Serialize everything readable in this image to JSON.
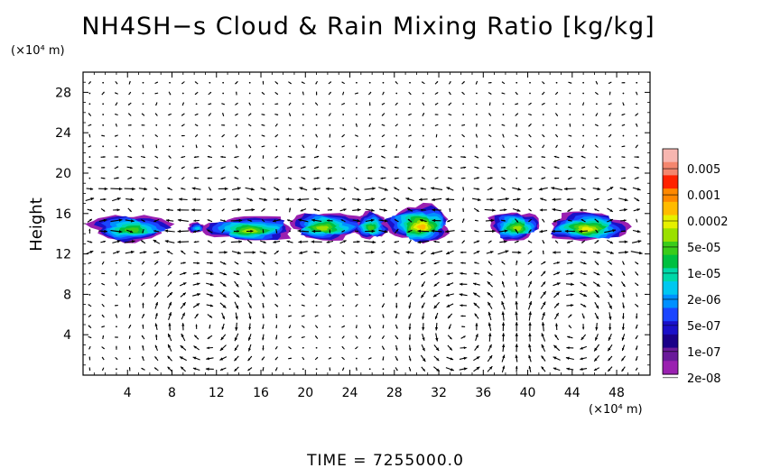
{
  "chart_data": {
    "type": "heatmap",
    "title": "NH4SH−s Cloud & Rain Mixing Ratio [kg/kg]",
    "ylabel": "Height",
    "xlabel": "",
    "x_unit": "(×10⁴ m)",
    "y_unit": "(×10⁴ m)",
    "xlim": [
      0,
      51
    ],
    "ylim": [
      0,
      30
    ],
    "xticks": [
      4,
      8,
      12,
      16,
      20,
      24,
      28,
      32,
      36,
      40,
      44,
      48
    ],
    "yticks": [
      4,
      8,
      12,
      16,
      20,
      24,
      28
    ],
    "colorbar": {
      "labels": [
        "0.005",
        "0.001",
        "0.0002",
        "5e-05",
        "1e-05",
        "2e-06",
        "5e-07",
        "1e-07",
        "2e-08"
      ],
      "colors": [
        "#f7b6b0",
        "#f4866e",
        "#ff2200",
        "#ff8800",
        "#ffbb00",
        "#e6f000",
        "#9be000",
        "#3acc1a",
        "#00c040",
        "#00d8a8",
        "#00c8f0",
        "#0090ff",
        "#1a46ff",
        "#1a10c8",
        "#1a0088",
        "#6a1a9a",
        "#9a20b0"
      ]
    },
    "cloud_regions": [
      {
        "x": 4.2,
        "y": 14.6,
        "w": 7.0,
        "h": 2.6,
        "level": 0.7
      },
      {
        "x": 10.2,
        "y": 14.6,
        "w": 1.6,
        "h": 1.0,
        "level": 0.45
      },
      {
        "x": 15.0,
        "y": 14.5,
        "w": 8.0,
        "h": 2.4,
        "level": 0.78
      },
      {
        "x": 22.0,
        "y": 14.8,
        "w": 6.5,
        "h": 2.7,
        "level": 0.74
      },
      {
        "x": 26.0,
        "y": 14.8,
        "w": 3.0,
        "h": 2.6,
        "level": 0.7
      },
      {
        "x": 30.2,
        "y": 15.0,
        "w": 5.6,
        "h": 3.6,
        "level": 0.9
      },
      {
        "x": 38.8,
        "y": 14.8,
        "w": 4.4,
        "h": 2.8,
        "level": 0.72
      },
      {
        "x": 45.4,
        "y": 14.7,
        "w": 7.0,
        "h": 2.8,
        "level": 0.82
      }
    ],
    "circulation_cells": [
      {
        "x": 11,
        "y": 5,
        "rx": 3.5,
        "ry": 4.5,
        "sense": 1
      },
      {
        "x": 34,
        "y": 4.5,
        "rx": 3.5,
        "ry": 4.5,
        "sense": -1
      },
      {
        "x": 44,
        "y": 5,
        "rx": 3.5,
        "ry": 4.5,
        "sense": 1
      }
    ]
  },
  "footer": {
    "time_label": "TIME  =  7255000.0"
  }
}
